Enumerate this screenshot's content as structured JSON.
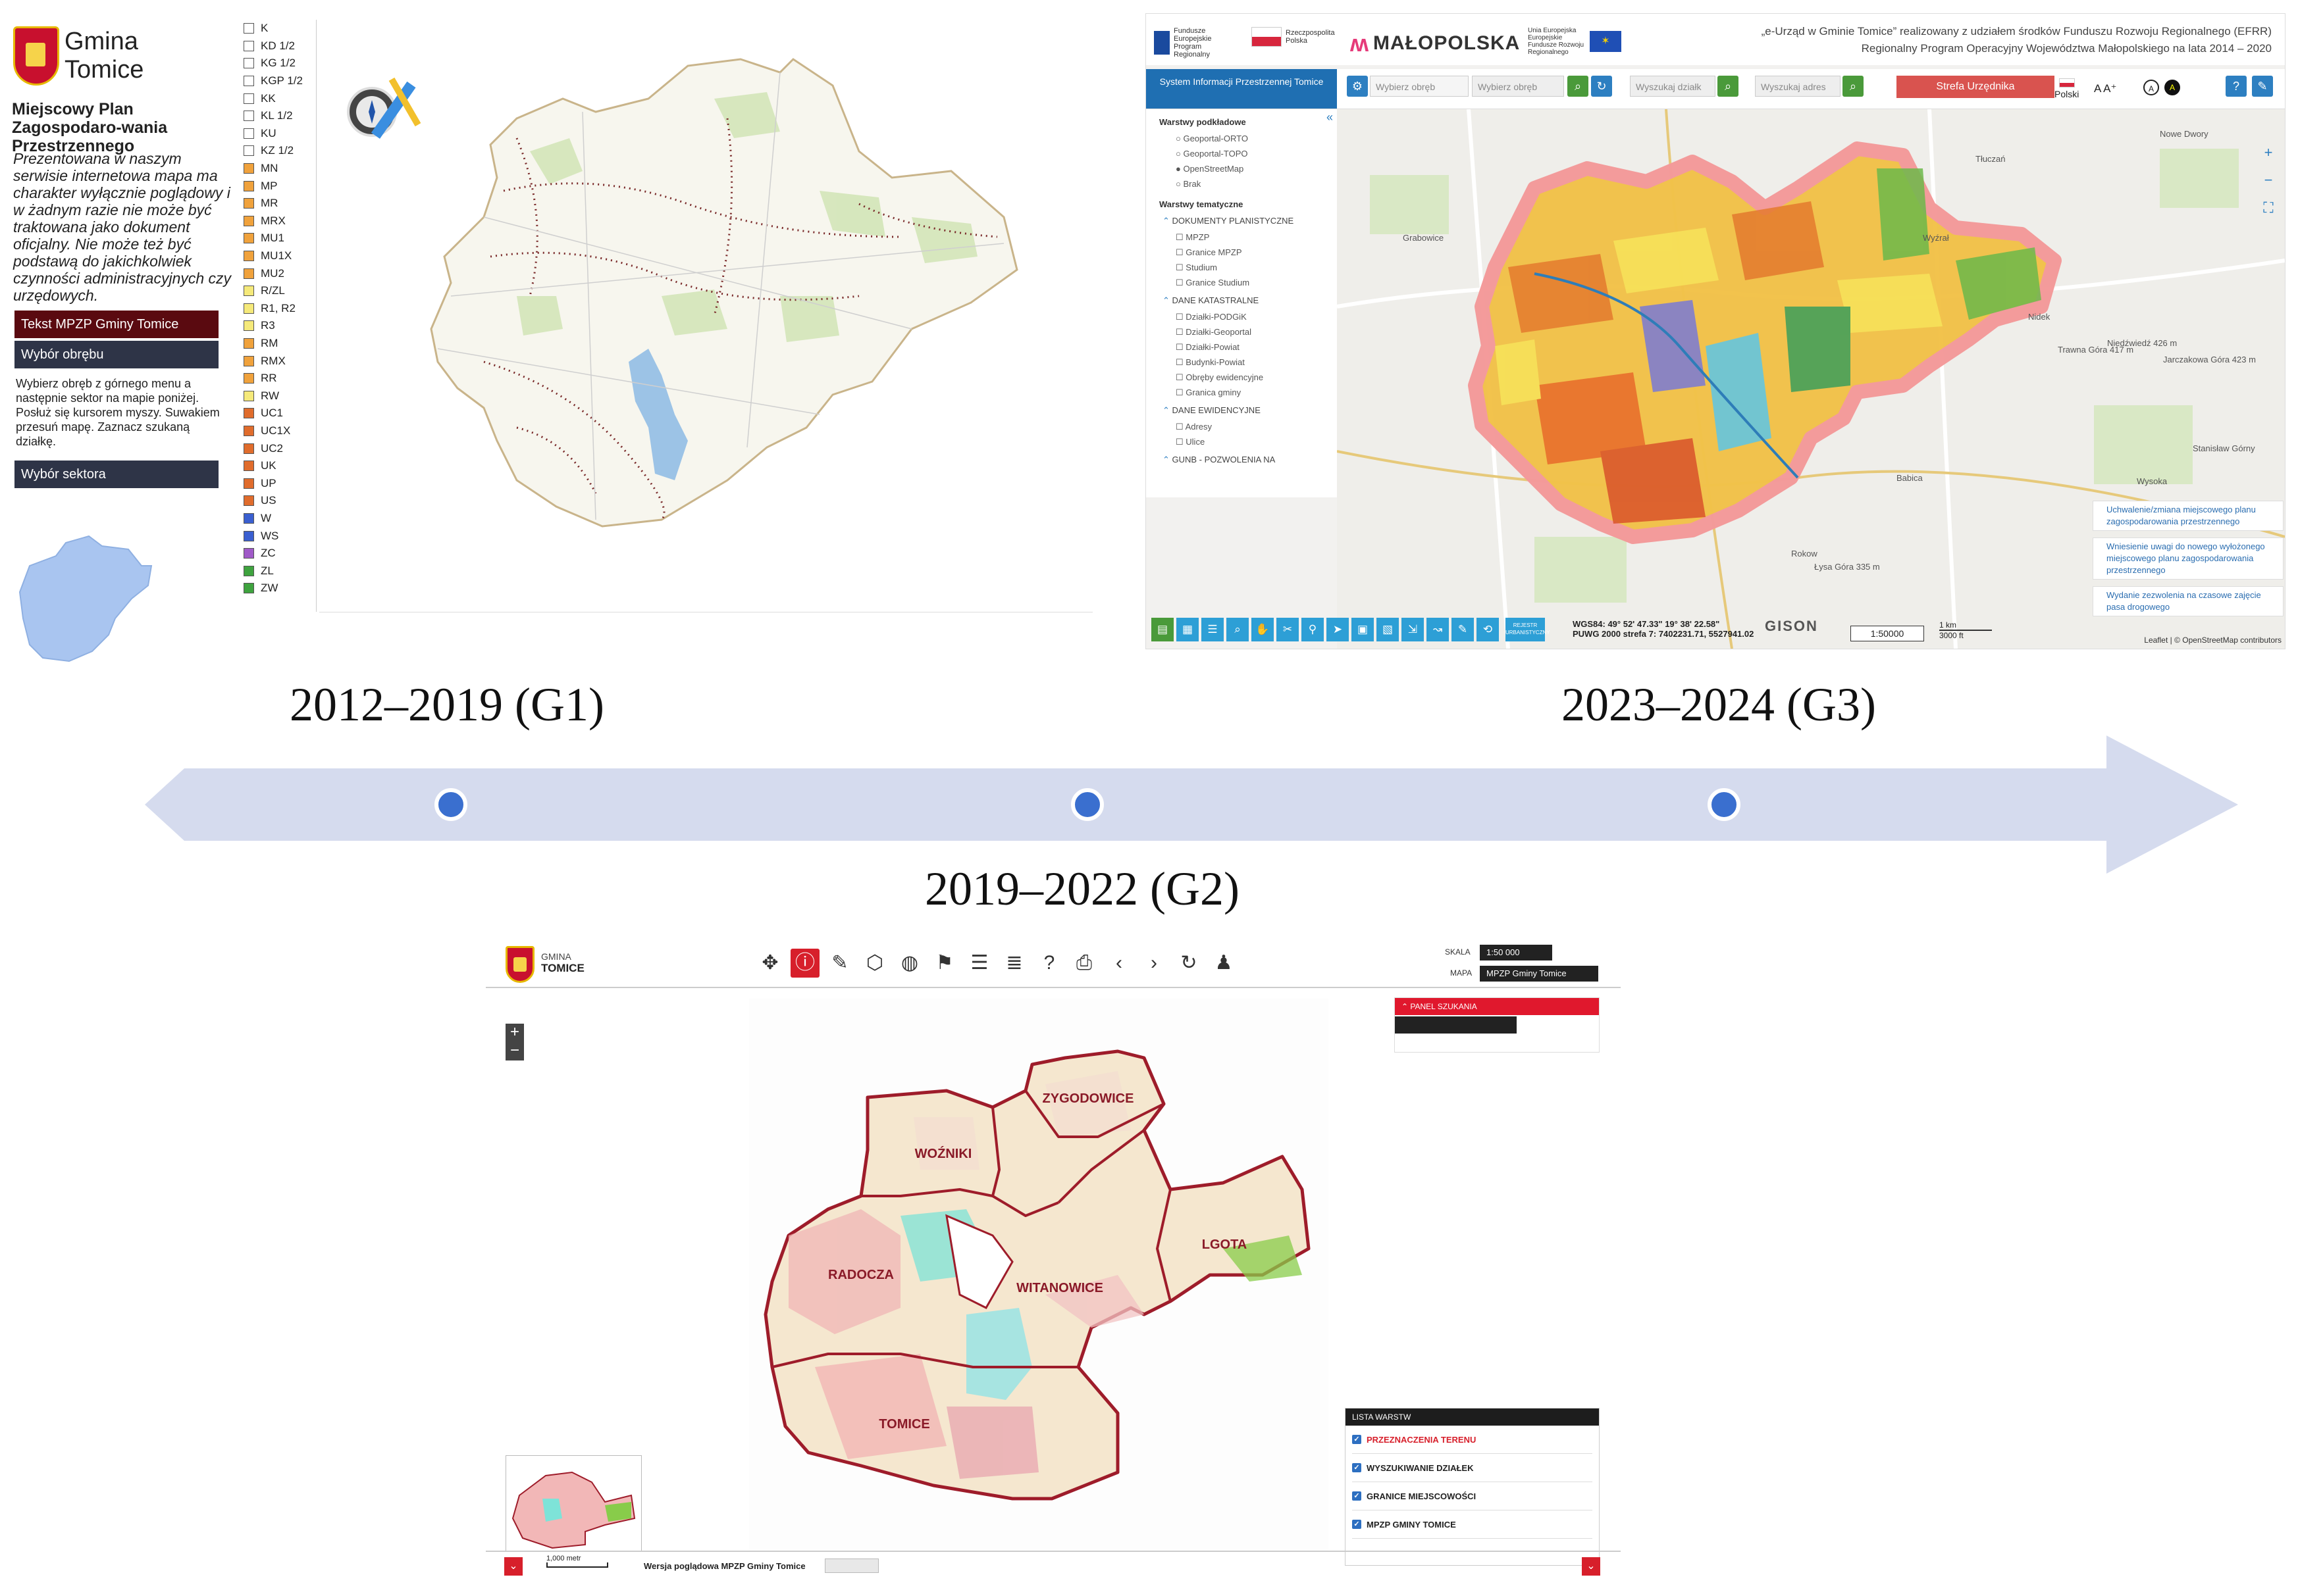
{
  "g1": {
    "logo_text": "Gmina Tomice",
    "app_title": "Miejscowy Plan Zagospodaro-wania Przestrzennego",
    "disclaimer": "Prezentowana w naszym serwisie internetowa mapa ma charakter wyłącznie poglądowy i w żadnym razie nie może być traktowana jako dokument oficjalny. Nie może też być podstawą do jakichkolwiek czynności administracyjnych czy urzędowych.",
    "btn_text_mpzp": "Tekst MPZP Gminy Tomice",
    "btn_wybor_obrebu": "Wybór obrębu",
    "instructions": "Wybierz obręb z górnego menu a następnie sektor na mapie poniżej. Posłuż się kursorem myszy. Suwakiem przesuń mapę. Zaznacz szukaną działkę.",
    "btn_wybor_sektora": "Wybór sektora",
    "legend": [
      {
        "code": "K",
        "color": "#ffffff"
      },
      {
        "code": "KD 1/2",
        "color": "#ffffff"
      },
      {
        "code": "KG 1/2",
        "color": "#ffffff"
      },
      {
        "code": "KGP 1/2",
        "color": "#ffffff"
      },
      {
        "code": "KK",
        "color": "#ffffff"
      },
      {
        "code": "KL 1/2",
        "color": "#ffffff"
      },
      {
        "code": "KU",
        "color": "#ffffff"
      },
      {
        "code": "KZ 1/2",
        "color": "#ffffff"
      },
      {
        "code": "MN",
        "color": "#f0a23c"
      },
      {
        "code": "MP",
        "color": "#f0a23c"
      },
      {
        "code": "MR",
        "color": "#f0a23c"
      },
      {
        "code": "MRX",
        "color": "#f0a23c"
      },
      {
        "code": "MU1",
        "color": "#f0a23c"
      },
      {
        "code": "MU1X",
        "color": "#f0a23c"
      },
      {
        "code": "MU2",
        "color": "#f0a23c"
      },
      {
        "code": "R/ZL",
        "color": "#f5e97a"
      },
      {
        "code": "R1, R2",
        "color": "#f5e97a"
      },
      {
        "code": "R3",
        "color": "#f5e97a"
      },
      {
        "code": "RM",
        "color": "#f0a23c"
      },
      {
        "code": "RMX",
        "color": "#f0a23c"
      },
      {
        "code": "RR",
        "color": "#f0a23c"
      },
      {
        "code": "RW",
        "color": "#f5e97a"
      },
      {
        "code": "UC1",
        "color": "#e06c2c"
      },
      {
        "code": "UC1X",
        "color": "#e06c2c"
      },
      {
        "code": "UC2",
        "color": "#e06c2c"
      },
      {
        "code": "UK",
        "color": "#e06c2c"
      },
      {
        "code": "UP",
        "color": "#e06c2c"
      },
      {
        "code": "US",
        "color": "#e06c2c"
      },
      {
        "code": "W",
        "color": "#3a5fd0"
      },
      {
        "code": "WS",
        "color": "#3a5fd0"
      },
      {
        "code": "ZC",
        "color": "#a05ac8"
      },
      {
        "code": "ZL",
        "color": "#3ea33e"
      },
      {
        "code": "ZW",
        "color": "#3ea33e"
      }
    ]
  },
  "g3": {
    "partners": [
      {
        "text": "Fundusze Europejskie Program Regionalny"
      },
      {
        "text": "Rzeczpospolita Polska"
      },
      {
        "text": "Unia Europejska Europejskie Fundusze Rozwoju Regionalnego"
      }
    ],
    "brand": "MAŁOPOLSKA",
    "credit_line1": "„e-Urząd w Gminie Tomice” realizowany z udziałem środków Funduszu Rozwoju Regionalnego (EFRR)",
    "credit_line2": "Regionalny Program Operacyjny Województwa Małopolskiego na lata 2014 – 2020",
    "side_header": "System Informacji Przestrzennej Tomice",
    "search_obreb_placeholder": "Wybierz obręb",
    "search_obreb2_placeholder": "Wybierz obręb",
    "search_dzialka_placeholder": "Wyszukaj działk",
    "search_adres_placeholder": "Wyszukaj adres",
    "strefa_button": "Strefa Urzędnika",
    "language": "Polski",
    "font_size_label": "A A⁺",
    "base_layers_head": "Warstwy podkładowe",
    "base_layers": [
      "Geoportal-ORTO",
      "Geoportal-TOPO",
      "OpenStreetMap",
      "Brak"
    ],
    "thematic_head": "Warstwy tematyczne",
    "groups": [
      {
        "name": "DOKUMENTY PLANISTYCZNE",
        "items": [
          "MPZP",
          "Granice MPZP",
          "Studium",
          "Granice Studium"
        ]
      },
      {
        "name": "DANE KATASTRALNE",
        "items": [
          "Działki-PODGiK",
          "Działki-Geoportal",
          "Działki-Powiat",
          "Budynki-Powiat",
          "Obręby ewidencyjne",
          "Granica gminy"
        ]
      },
      {
        "name": "DANE EWIDENCYJNE",
        "items": [
          "Adresy",
          "Ulice"
        ]
      },
      {
        "name": "GUNB - POZWOLENIA NA",
        "items": []
      }
    ],
    "rejestr_button": "REJESTR URBANISTYCZNY",
    "coords_wgs": "WGS84: 49° 52' 47.33\" 19° 38' 22.58\"",
    "coords_puwg": "PUWG 2000 strefa 7: 7402231.71, 5527941.02",
    "gison": "GISON",
    "scale_value": "1:50000",
    "scale_km": "1 km",
    "scale_ft": "3000 ft",
    "links": [
      "Uchwalenie/zmiana miejscowego planu zagospodarowania przestrzennego",
      "Wniesienie uwagi do nowego wyłożonego miejscowego planu zagospodarowania przestrzennego",
      "Wydanie zezwolenia na czasowe zajęcie pasa drogowego"
    ],
    "attribution": "Leaflet | © OpenStreetMap contributors",
    "place_labels": [
      "Nowe Dwory",
      "Tłuczań",
      "Wyźrał",
      "Grabowice",
      "Nidek",
      "Trawna Góra 417 m",
      "Niedźwiedź 426 m",
      "Jarczakowa Góra 423 m",
      "Stanisław Górny",
      "Wysoka",
      "Babica",
      "Łysa Góra 335 m",
      "Rokow"
    ]
  },
  "timeline": {
    "g1_label": "2012–2019 (G1)",
    "g2_label": "2019–2022 (G2)",
    "g3_label": "2023–2024 (G3)"
  },
  "g2": {
    "logo_line1": "GMINA",
    "logo_line2": "TOMICE",
    "skala_label": "SKALA",
    "skala_value": "1:50 000",
    "mapa_label": "MAPA",
    "mapa_value": "MPZP Gminy Tomice",
    "panel_szukania": "PANEL SZUKANIA",
    "region_labels": [
      "WOŹNIKI",
      "ZYGODOWICE",
      "RADOCZA",
      "WITANOWICE",
      "LGOTA",
      "TOMICE"
    ],
    "lista_warstw": "LISTA WARSTW",
    "layers": [
      {
        "label": "PRZEZNACZENIA TERENU",
        "red": true
      },
      {
        "label": "WYSZUKIWANIE DZIAŁEK",
        "red": false
      },
      {
        "label": "GRANICE MIEJSCOWOŚCI",
        "red": false
      },
      {
        "label": "MPZP GMINY TOMICE",
        "red": false
      }
    ],
    "scale_text": "1,000 metr",
    "version_text": "Wersja poglądowa MPZP Gminy Tomice"
  }
}
